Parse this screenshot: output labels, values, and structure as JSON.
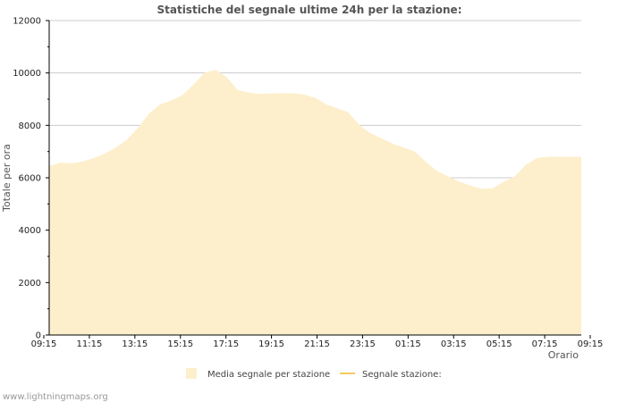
{
  "chart_data": {
    "type": "area",
    "title": "Statistiche del segnale ultime 24h per la stazione:",
    "xlabel": "Orario",
    "ylabel": "Totale per ora",
    "ylim": [
      0,
      12000
    ],
    "yticks": [
      0,
      2000,
      4000,
      6000,
      8000,
      10000,
      12000
    ],
    "xticks": [
      "09:15",
      "11:15",
      "13:15",
      "15:15",
      "17:15",
      "19:15",
      "21:15",
      "23:15",
      "01:15",
      "03:15",
      "05:15",
      "07:15",
      "09:15"
    ],
    "x_hours": [
      0,
      0.5,
      1,
      1.5,
      2,
      2.5,
      3,
      3.5,
      4,
      4.5,
      5,
      5.5,
      6,
      6.5,
      7,
      7.5,
      8,
      8.5,
      9,
      9.5,
      10,
      10.5,
      11,
      11.5,
      12,
      12.5,
      13,
      13.5,
      14,
      14.5,
      15,
      15.5,
      16,
      16.5,
      17,
      17.5,
      18,
      18.5,
      19,
      19.5,
      20,
      20.5,
      21,
      21.5,
      22,
      22.5,
      23,
      23.5,
      24
    ],
    "series": [
      {
        "name": "Media segnale per stazione",
        "color": "#fdefcc",
        "values": [
          6450,
          6580,
          6550,
          6620,
          6750,
          6920,
          7150,
          7450,
          7900,
          8450,
          8800,
          8950,
          9150,
          9550,
          10000,
          10120,
          9850,
          9350,
          9250,
          9200,
          9220,
          9230,
          9220,
          9180,
          9050,
          8800,
          8650,
          8500,
          8000,
          7700,
          7500,
          7300,
          7150,
          7000,
          6600,
          6250,
          6050,
          5850,
          5700,
          5580,
          5600,
          5850,
          6050,
          6500,
          6750,
          6800,
          6800,
          6800,
          6800
        ]
      },
      {
        "name": "Segnale stazione:",
        "color": "#f5c862",
        "values": []
      }
    ],
    "grid": true,
    "legend_position": "bottom"
  },
  "credit": "www.lightningmaps.org"
}
